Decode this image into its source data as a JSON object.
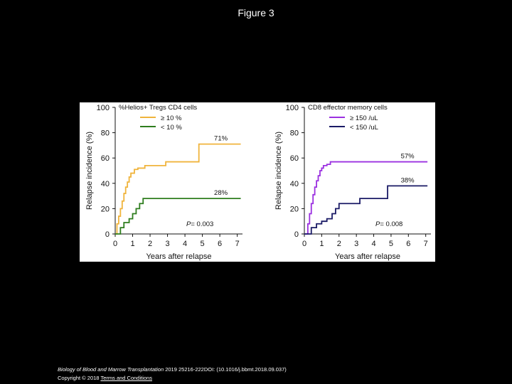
{
  "page": {
    "title": "Figure 3",
    "citation_journal": "Biology of Blood and Marrow Transplantation",
    "citation_rest": " 2019 25216-222DOI: (10.1016/j.bbmt.2018.09.037)",
    "copyright": "Copyright © 2018 ",
    "terms_link": "Terms and Conditions"
  },
  "colors": {
    "orange": "#F0B43C",
    "green": "#2E7D1E",
    "purple": "#9B30E0",
    "navy": "#1A1A66"
  },
  "chart_data": [
    {
      "type": "line",
      "step": true,
      "title": "%Helios+ Tregs CD4 cells",
      "xlabel": "Years after relapse",
      "ylabel": "Relapse incidence (%)",
      "xlim": [
        0,
        7.3
      ],
      "ylim": [
        0,
        100
      ],
      "xticks": [
        0,
        1,
        2,
        3,
        4,
        5,
        6,
        7
      ],
      "yticks": [
        0,
        20,
        40,
        60,
        80,
        100
      ],
      "p_label": "P",
      "p_value": "= 0.003",
      "series": [
        {
          "name": "≥ 10 %",
          "color": "#F0B43C",
          "end_label": "71%",
          "x": [
            0,
            0.1,
            0.2,
            0.3,
            0.4,
            0.5,
            0.6,
            0.7,
            0.8,
            0.9,
            1.1,
            1.3,
            1.7,
            2.9,
            4.8,
            7.2
          ],
          "y": [
            0,
            8,
            14,
            20,
            26,
            32,
            37,
            41,
            45,
            48,
            51,
            52,
            54,
            57,
            71,
            71
          ]
        },
        {
          "name": "< 10 %",
          "color": "#2E7D1E",
          "end_label": "28%",
          "x": [
            0,
            0.3,
            0.5,
            0.8,
            1.0,
            1.2,
            1.4,
            1.6,
            7.2
          ],
          "y": [
            0,
            5,
            9,
            12,
            16,
            20,
            24,
            28,
            28
          ]
        }
      ]
    },
    {
      "type": "line",
      "step": true,
      "title": "CD8 effector memory cells",
      "xlabel": "Years after relapse",
      "ylabel": "Relapse incidence (%)",
      "xlim": [
        0,
        7.3
      ],
      "ylim": [
        0,
        100
      ],
      "xticks": [
        0,
        1,
        2,
        3,
        4,
        5,
        6,
        7
      ],
      "yticks": [
        0,
        20,
        40,
        60,
        80,
        100
      ],
      "p_label": "P",
      "p_value": "= 0.008",
      "series": [
        {
          "name": "≥ 150 /uL",
          "color": "#9B30E0",
          "end_label": "57%",
          "x": [
            0,
            0.2,
            0.3,
            0.4,
            0.5,
            0.6,
            0.7,
            0.8,
            0.9,
            1.0,
            1.1,
            1.3,
            1.5,
            7.1
          ],
          "y": [
            0,
            8,
            16,
            24,
            31,
            37,
            42,
            46,
            50,
            52,
            54,
            55,
            57,
            57
          ]
        },
        {
          "name": "< 150 /uL",
          "color": "#1A1A66",
          "end_label": "38%",
          "x": [
            0,
            0.4,
            0.7,
            1.0,
            1.3,
            1.6,
            1.8,
            2.0,
            2.8,
            3.2,
            4.8,
            7.1
          ],
          "y": [
            0,
            5,
            8,
            10,
            12,
            16,
            20,
            24,
            24,
            28,
            38,
            38
          ]
        }
      ]
    }
  ]
}
